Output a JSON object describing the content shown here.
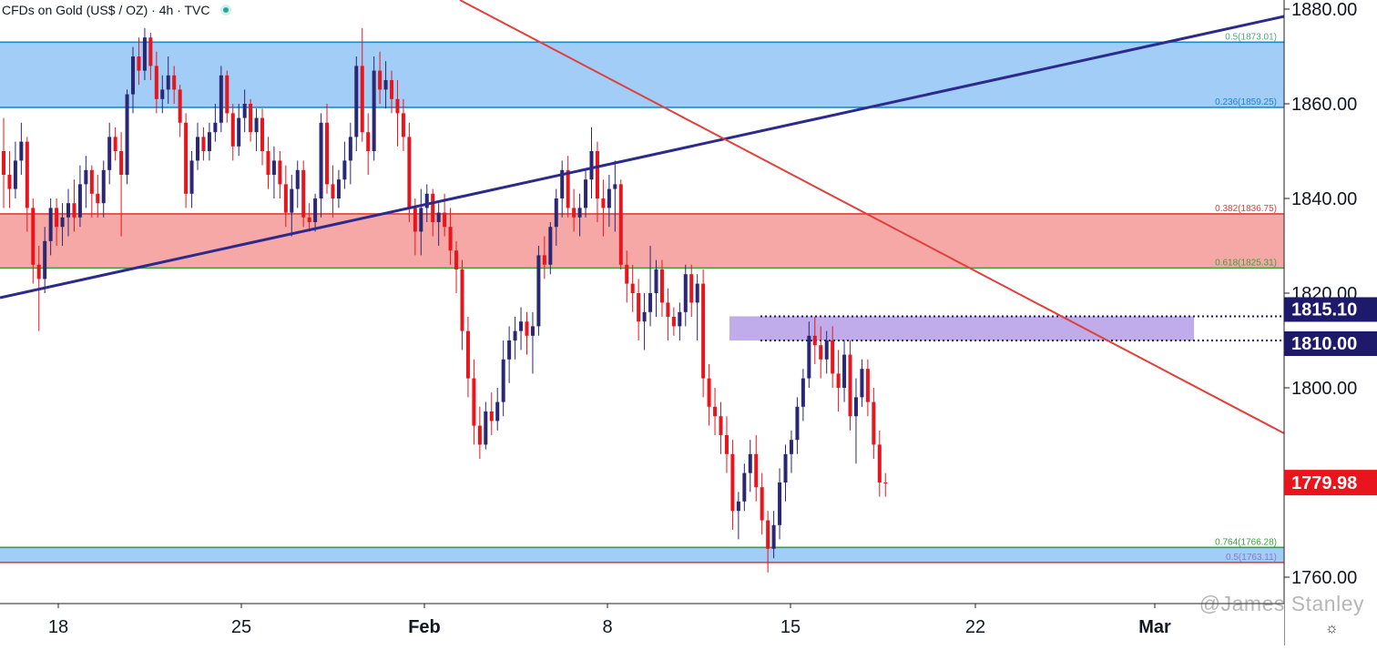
{
  "header": {
    "symbol": "CFDs on Gold (US$ / OZ)",
    "interval": "4h",
    "source": "TVC",
    "separator": "·"
  },
  "watermark": "@James Stanley",
  "settings_icon": "gear-icon",
  "colors": {
    "up": "#2a2774",
    "down": "#e8151c",
    "trendline_blue": "#2c2a8c",
    "trendline_red": "#e0403c",
    "zone_blue": "#9ccaf7",
    "zone_red": "#f5a3a1",
    "zone_purple": "#b59ee6",
    "price_tag": "#1d1a6b",
    "last_tag": "#e8151c"
  },
  "chart_data": {
    "type": "candlestick",
    "title": "CFDs on Gold (US$ / OZ) · 4h · TVC",
    "x_ticks": [
      "18",
      "25",
      "Feb",
      "8",
      "15",
      "22",
      "Mar"
    ],
    "y_ticks": [
      "1760.00",
      "1780.00",
      "1800.00",
      "1820.00",
      "1840.00",
      "1860.00",
      "1880.00"
    ],
    "ylim": [
      1755,
      1881
    ],
    "last_price": "1779.98",
    "price_tags": [
      "1815.10",
      "1810.00"
    ],
    "fib_levels": [
      {
        "label": "0.5(1873.01)",
        "value": 1873.01
      },
      {
        "label": "0.236(1859.25)",
        "value": 1859.25
      },
      {
        "label": "0.382(1836.75)",
        "value": 1836.75
      },
      {
        "label": "0.618(1825.31)",
        "value": 1825.31
      },
      {
        "label": "0.764(1766.28)",
        "value": 1766.28
      },
      {
        "label": "0.5(1763.11)",
        "value": 1763.11
      }
    ],
    "zones": [
      {
        "name": "upper-resistance-zone",
        "from": 1859.25,
        "to": 1873.01,
        "color": "blue"
      },
      {
        "name": "fib-confluence-zone",
        "from": 1825.31,
        "to": 1836.75,
        "color": "red"
      },
      {
        "name": "support-resistance-zone",
        "from": 1810.0,
        "to": 1815.1,
        "color": "purple"
      },
      {
        "name": "lower-support-zone",
        "from": 1763.11,
        "to": 1766.28,
        "color": "blue"
      }
    ],
    "candles": [
      {
        "o": 1850,
        "h": 1857,
        "l": 1838,
        "c": 1845
      },
      {
        "o": 1845,
        "h": 1850,
        "l": 1838,
        "c": 1842
      },
      {
        "o": 1842,
        "h": 1852,
        "l": 1840,
        "c": 1848
      },
      {
        "o": 1848,
        "h": 1856,
        "l": 1845,
        "c": 1852
      },
      {
        "o": 1852,
        "h": 1853,
        "l": 1833,
        "c": 1838
      },
      {
        "o": 1838,
        "h": 1840,
        "l": 1822,
        "c": 1826
      },
      {
        "o": 1826,
        "h": 1830,
        "l": 1812,
        "c": 1823
      },
      {
        "o": 1823,
        "h": 1834,
        "l": 1820,
        "c": 1831
      },
      {
        "o": 1831,
        "h": 1840,
        "l": 1828,
        "c": 1838
      },
      {
        "o": 1838,
        "h": 1840,
        "l": 1830,
        "c": 1834
      },
      {
        "o": 1834,
        "h": 1839,
        "l": 1830,
        "c": 1836
      },
      {
        "o": 1836,
        "h": 1842,
        "l": 1832,
        "c": 1839
      },
      {
        "o": 1839,
        "h": 1844,
        "l": 1833,
        "c": 1836
      },
      {
        "o": 1836,
        "h": 1847,
        "l": 1834,
        "c": 1843
      },
      {
        "o": 1843,
        "h": 1849,
        "l": 1838,
        "c": 1846
      },
      {
        "o": 1846,
        "h": 1847,
        "l": 1836,
        "c": 1841
      },
      {
        "o": 1841,
        "h": 1845,
        "l": 1836,
        "c": 1839
      },
      {
        "o": 1839,
        "h": 1848,
        "l": 1836,
        "c": 1846
      },
      {
        "o": 1846,
        "h": 1856,
        "l": 1843,
        "c": 1853
      },
      {
        "o": 1853,
        "h": 1855,
        "l": 1848,
        "c": 1850
      },
      {
        "o": 1850,
        "h": 1854,
        "l": 1832,
        "c": 1845
      },
      {
        "o": 1845,
        "h": 1863,
        "l": 1843,
        "c": 1862
      },
      {
        "o": 1862,
        "h": 1872,
        "l": 1858,
        "c": 1870
      },
      {
        "o": 1870,
        "h": 1874,
        "l": 1864,
        "c": 1867
      },
      {
        "o": 1867,
        "h": 1876,
        "l": 1865,
        "c": 1874
      },
      {
        "o": 1874,
        "h": 1875,
        "l": 1865,
        "c": 1868
      },
      {
        "o": 1868,
        "h": 1871,
        "l": 1858,
        "c": 1861
      },
      {
        "o": 1861,
        "h": 1866,
        "l": 1858,
        "c": 1863
      },
      {
        "o": 1863,
        "h": 1870,
        "l": 1860,
        "c": 1866
      },
      {
        "o": 1866,
        "h": 1868,
        "l": 1860,
        "c": 1863
      },
      {
        "o": 1863,
        "h": 1864,
        "l": 1853,
        "c": 1856
      },
      {
        "o": 1856,
        "h": 1858,
        "l": 1838,
        "c": 1841
      },
      {
        "o": 1841,
        "h": 1850,
        "l": 1838,
        "c": 1848
      },
      {
        "o": 1848,
        "h": 1856,
        "l": 1846,
        "c": 1853
      },
      {
        "o": 1853,
        "h": 1855,
        "l": 1848,
        "c": 1850
      },
      {
        "o": 1850,
        "h": 1856,
        "l": 1848,
        "c": 1854
      },
      {
        "o": 1854,
        "h": 1860,
        "l": 1852,
        "c": 1856
      },
      {
        "o": 1856,
        "h": 1868,
        "l": 1854,
        "c": 1866
      },
      {
        "o": 1866,
        "h": 1867,
        "l": 1856,
        "c": 1858
      },
      {
        "o": 1858,
        "h": 1860,
        "l": 1848,
        "c": 1851
      },
      {
        "o": 1851,
        "h": 1860,
        "l": 1849,
        "c": 1857
      },
      {
        "o": 1857,
        "h": 1863,
        "l": 1854,
        "c": 1860
      },
      {
        "o": 1860,
        "h": 1861,
        "l": 1852,
        "c": 1854
      },
      {
        "o": 1854,
        "h": 1859,
        "l": 1850,
        "c": 1857
      },
      {
        "o": 1857,
        "h": 1859,
        "l": 1847,
        "c": 1850
      },
      {
        "o": 1850,
        "h": 1853,
        "l": 1842,
        "c": 1845
      },
      {
        "o": 1845,
        "h": 1851,
        "l": 1840,
        "c": 1848
      },
      {
        "o": 1848,
        "h": 1850,
        "l": 1840,
        "c": 1843
      },
      {
        "o": 1843,
        "h": 1847,
        "l": 1834,
        "c": 1837
      },
      {
        "o": 1837,
        "h": 1845,
        "l": 1832,
        "c": 1842
      },
      {
        "o": 1842,
        "h": 1848,
        "l": 1838,
        "c": 1846
      },
      {
        "o": 1846,
        "h": 1848,
        "l": 1834,
        "c": 1836
      },
      {
        "o": 1836,
        "h": 1839,
        "l": 1833,
        "c": 1835
      },
      {
        "o": 1835,
        "h": 1841,
        "l": 1833,
        "c": 1840
      },
      {
        "o": 1840,
        "h": 1858,
        "l": 1836,
        "c": 1856
      },
      {
        "o": 1856,
        "h": 1860,
        "l": 1841,
        "c": 1843
      },
      {
        "o": 1843,
        "h": 1847,
        "l": 1836,
        "c": 1840
      },
      {
        "o": 1840,
        "h": 1846,
        "l": 1838,
        "c": 1844
      },
      {
        "o": 1844,
        "h": 1852,
        "l": 1842,
        "c": 1848
      },
      {
        "o": 1848,
        "h": 1856,
        "l": 1843,
        "c": 1853
      },
      {
        "o": 1853,
        "h": 1870,
        "l": 1850,
        "c": 1868
      },
      {
        "o": 1868,
        "h": 1876,
        "l": 1852,
        "c": 1854
      },
      {
        "o": 1854,
        "h": 1858,
        "l": 1845,
        "c": 1850
      },
      {
        "o": 1850,
        "h": 1870,
        "l": 1848,
        "c": 1867
      },
      {
        "o": 1867,
        "h": 1871,
        "l": 1860,
        "c": 1863
      },
      {
        "o": 1863,
        "h": 1869,
        "l": 1859,
        "c": 1865
      },
      {
        "o": 1865,
        "h": 1867,
        "l": 1858,
        "c": 1861
      },
      {
        "o": 1861,
        "h": 1865,
        "l": 1851,
        "c": 1858
      },
      {
        "o": 1858,
        "h": 1861,
        "l": 1850,
        "c": 1853
      },
      {
        "o": 1853,
        "h": 1856,
        "l": 1835,
        "c": 1838
      },
      {
        "o": 1838,
        "h": 1840,
        "l": 1828,
        "c": 1833
      },
      {
        "o": 1833,
        "h": 1842,
        "l": 1828,
        "c": 1838
      },
      {
        "o": 1838,
        "h": 1843,
        "l": 1835,
        "c": 1841
      },
      {
        "o": 1841,
        "h": 1842,
        "l": 1832,
        "c": 1835
      },
      {
        "o": 1835,
        "h": 1839,
        "l": 1830,
        "c": 1837
      },
      {
        "o": 1837,
        "h": 1841,
        "l": 1832,
        "c": 1834
      },
      {
        "o": 1834,
        "h": 1838,
        "l": 1826,
        "c": 1829
      },
      {
        "o": 1829,
        "h": 1831,
        "l": 1820,
        "c": 1825
      },
      {
        "o": 1825,
        "h": 1827,
        "l": 1808,
        "c": 1812
      },
      {
        "o": 1812,
        "h": 1815,
        "l": 1798,
        "c": 1802
      },
      {
        "o": 1802,
        "h": 1806,
        "l": 1788,
        "c": 1792
      },
      {
        "o": 1792,
        "h": 1796,
        "l": 1785,
        "c": 1788
      },
      {
        "o": 1788,
        "h": 1797,
        "l": 1787,
        "c": 1795
      },
      {
        "o": 1795,
        "h": 1799,
        "l": 1790,
        "c": 1793
      },
      {
        "o": 1793,
        "h": 1800,
        "l": 1791,
        "c": 1797
      },
      {
        "o": 1797,
        "h": 1810,
        "l": 1794,
        "c": 1806
      },
      {
        "o": 1806,
        "h": 1813,
        "l": 1801,
        "c": 1810
      },
      {
        "o": 1810,
        "h": 1815,
        "l": 1806,
        "c": 1812
      },
      {
        "o": 1812,
        "h": 1817,
        "l": 1808,
        "c": 1814
      },
      {
        "o": 1814,
        "h": 1816,
        "l": 1807,
        "c": 1811
      },
      {
        "o": 1811,
        "h": 1816,
        "l": 1803,
        "c": 1813
      },
      {
        "o": 1813,
        "h": 1830,
        "l": 1811,
        "c": 1828
      },
      {
        "o": 1828,
        "h": 1832,
        "l": 1823,
        "c": 1826
      },
      {
        "o": 1826,
        "h": 1835,
        "l": 1824,
        "c": 1834
      },
      {
        "o": 1834,
        "h": 1842,
        "l": 1830,
        "c": 1840
      },
      {
        "o": 1840,
        "h": 1848,
        "l": 1836,
        "c": 1846
      },
      {
        "o": 1846,
        "h": 1849,
        "l": 1836,
        "c": 1838
      },
      {
        "o": 1838,
        "h": 1842,
        "l": 1833,
        "c": 1836
      },
      {
        "o": 1836,
        "h": 1841,
        "l": 1832,
        "c": 1838
      },
      {
        "o": 1838,
        "h": 1846,
        "l": 1836,
        "c": 1844
      },
      {
        "o": 1844,
        "h": 1855,
        "l": 1840,
        "c": 1850
      },
      {
        "o": 1850,
        "h": 1852,
        "l": 1835,
        "c": 1840
      },
      {
        "o": 1840,
        "h": 1844,
        "l": 1832,
        "c": 1838
      },
      {
        "o": 1838,
        "h": 1845,
        "l": 1834,
        "c": 1842
      },
      {
        "o": 1842,
        "h": 1848,
        "l": 1833,
        "c": 1843
      },
      {
        "o": 1843,
        "h": 1844,
        "l": 1825,
        "c": 1826
      },
      {
        "o": 1826,
        "h": 1829,
        "l": 1818,
        "c": 1822
      },
      {
        "o": 1822,
        "h": 1826,
        "l": 1816,
        "c": 1820
      },
      {
        "o": 1820,
        "h": 1823,
        "l": 1810,
        "c": 1814
      },
      {
        "o": 1814,
        "h": 1820,
        "l": 1808,
        "c": 1816
      },
      {
        "o": 1816,
        "h": 1830,
        "l": 1813,
        "c": 1820
      },
      {
        "o": 1820,
        "h": 1827,
        "l": 1815,
        "c": 1825
      },
      {
        "o": 1825,
        "h": 1827,
        "l": 1815,
        "c": 1818
      },
      {
        "o": 1818,
        "h": 1821,
        "l": 1810,
        "c": 1815
      },
      {
        "o": 1815,
        "h": 1817,
        "l": 1811,
        "c": 1813
      },
      {
        "o": 1813,
        "h": 1818,
        "l": 1810,
        "c": 1816
      },
      {
        "o": 1816,
        "h": 1826,
        "l": 1813,
        "c": 1824
      },
      {
        "o": 1824,
        "h": 1826,
        "l": 1815,
        "c": 1818
      },
      {
        "o": 1818,
        "h": 1824,
        "l": 1810,
        "c": 1822
      },
      {
        "o": 1822,
        "h": 1825,
        "l": 1798,
        "c": 1802
      },
      {
        "o": 1802,
        "h": 1805,
        "l": 1792,
        "c": 1796
      },
      {
        "o": 1796,
        "h": 1800,
        "l": 1790,
        "c": 1794
      },
      {
        "o": 1794,
        "h": 1797,
        "l": 1786,
        "c": 1790
      },
      {
        "o": 1790,
        "h": 1794,
        "l": 1782,
        "c": 1786
      },
      {
        "o": 1786,
        "h": 1789,
        "l": 1770,
        "c": 1774
      },
      {
        "o": 1774,
        "h": 1778,
        "l": 1768,
        "c": 1776
      },
      {
        "o": 1776,
        "h": 1784,
        "l": 1774,
        "c": 1782
      },
      {
        "o": 1782,
        "h": 1789,
        "l": 1778,
        "c": 1786
      },
      {
        "o": 1786,
        "h": 1790,
        "l": 1776,
        "c": 1779
      },
      {
        "o": 1779,
        "h": 1782,
        "l": 1769,
        "c": 1772
      },
      {
        "o": 1772,
        "h": 1774,
        "l": 1761,
        "c": 1766
      },
      {
        "o": 1766,
        "h": 1774,
        "l": 1764,
        "c": 1771
      },
      {
        "o": 1771,
        "h": 1783,
        "l": 1768,
        "c": 1780
      },
      {
        "o": 1780,
        "h": 1788,
        "l": 1776,
        "c": 1786
      },
      {
        "o": 1786,
        "h": 1791,
        "l": 1782,
        "c": 1789
      },
      {
        "o": 1789,
        "h": 1798,
        "l": 1786,
        "c": 1796
      },
      {
        "o": 1796,
        "h": 1804,
        "l": 1793,
        "c": 1802
      },
      {
        "o": 1802,
        "h": 1814,
        "l": 1800,
        "c": 1811
      },
      {
        "o": 1811,
        "h": 1815,
        "l": 1805,
        "c": 1809
      },
      {
        "o": 1809,
        "h": 1813,
        "l": 1802,
        "c": 1806
      },
      {
        "o": 1806,
        "h": 1812,
        "l": 1803,
        "c": 1810
      },
      {
        "o": 1810,
        "h": 1813,
        "l": 1800,
        "c": 1803
      },
      {
        "o": 1803,
        "h": 1808,
        "l": 1795,
        "c": 1800
      },
      {
        "o": 1800,
        "h": 1810,
        "l": 1797,
        "c": 1807
      },
      {
        "o": 1807,
        "h": 1810,
        "l": 1791,
        "c": 1794
      },
      {
        "o": 1794,
        "h": 1802,
        "l": 1784,
        "c": 1798
      },
      {
        "o": 1798,
        "h": 1806,
        "l": 1796,
        "c": 1804
      },
      {
        "o": 1804,
        "h": 1806,
        "l": 1794,
        "c": 1797
      },
      {
        "o": 1797,
        "h": 1800,
        "l": 1785,
        "c": 1788
      },
      {
        "o": 1788,
        "h": 1791,
        "l": 1777,
        "c": 1780
      },
      {
        "o": 1780,
        "h": 1782,
        "l": 1777,
        "c": 1779.98
      }
    ]
  }
}
